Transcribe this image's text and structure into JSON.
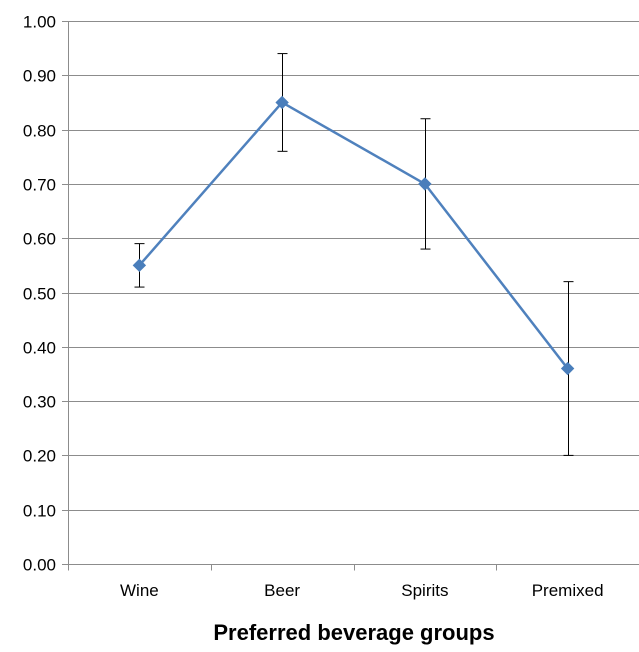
{
  "chart_data": {
    "type": "line",
    "title": "",
    "xlabel": "Preferred beverage groups",
    "ylabel": "",
    "categories": [
      "Wine",
      "Beer",
      "Spirits",
      "Premixed"
    ],
    "series": [
      {
        "values": [
          0.55,
          0.85,
          0.7,
          0.36
        ],
        "error_low": [
          0.51,
          0.76,
          0.58,
          0.2
        ],
        "error_high": [
          0.59,
          0.94,
          0.82,
          0.52
        ]
      }
    ],
    "ylim": [
      0,
      1
    ],
    "yticks": [
      "0.00",
      "0.10",
      "0.20",
      "0.30",
      "0.40",
      "0.50",
      "0.60",
      "0.70",
      "0.80",
      "0.90",
      "1.00"
    ],
    "grid": true,
    "legend": "none",
    "colors": {
      "series": "#4f81bd",
      "marker": "#4a7ebb",
      "error_bar": "#000000",
      "grid": "#8c8c8c",
      "axis": "#8c8c8c"
    }
  }
}
